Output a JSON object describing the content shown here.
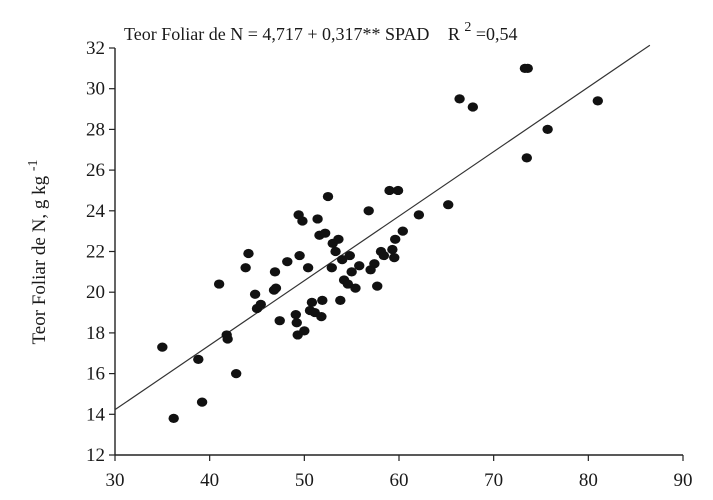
{
  "chart_data": {
    "type": "scatter",
    "title": "",
    "equation": {
      "text": "Teor Foliar de N = 4,717 + 0,317** SPAD",
      "r2_prefix": "R",
      "r2_sup": "2",
      "r2_value": "=0,54"
    },
    "xlabel": "",
    "ylabel": "Teor Foliar de N, g kg",
    "ylabel_sup": "-1",
    "xlim": [
      30,
      90
    ],
    "ylim": [
      12,
      32
    ],
    "xticks": [
      30,
      40,
      50,
      60,
      70,
      80,
      90
    ],
    "yticks": [
      12,
      14,
      16,
      18,
      20,
      22,
      24,
      26,
      28,
      30,
      32
    ],
    "grid": false,
    "point_color": "#111111",
    "line_color": "#333333",
    "regression": {
      "intercept": 4.717,
      "slope": 0.317,
      "x_range": [
        30,
        86.5
      ]
    },
    "points": [
      {
        "x": 35.0,
        "y": 17.3
      },
      {
        "x": 36.2,
        "y": 13.8
      },
      {
        "x": 38.8,
        "y": 16.7
      },
      {
        "x": 39.2,
        "y": 14.6
      },
      {
        "x": 41.0,
        "y": 20.4
      },
      {
        "x": 41.8,
        "y": 17.9
      },
      {
        "x": 41.9,
        "y": 17.7
      },
      {
        "x": 42.8,
        "y": 16.0
      },
      {
        "x": 43.8,
        "y": 21.2
      },
      {
        "x": 44.1,
        "y": 21.9
      },
      {
        "x": 44.8,
        "y": 19.9
      },
      {
        "x": 45.0,
        "y": 19.2
      },
      {
        "x": 45.4,
        "y": 19.4
      },
      {
        "x": 46.9,
        "y": 21.0
      },
      {
        "x": 46.8,
        "y": 20.1
      },
      {
        "x": 47.0,
        "y": 20.2
      },
      {
        "x": 47.4,
        "y": 18.6
      },
      {
        "x": 48.2,
        "y": 21.5
      },
      {
        "x": 49.1,
        "y": 18.9
      },
      {
        "x": 49.2,
        "y": 18.5
      },
      {
        "x": 49.3,
        "y": 17.9
      },
      {
        "x": 49.4,
        "y": 23.8
      },
      {
        "x": 49.5,
        "y": 21.8
      },
      {
        "x": 49.8,
        "y": 23.5
      },
      {
        "x": 50.0,
        "y": 18.1
      },
      {
        "x": 50.4,
        "y": 21.2
      },
      {
        "x": 50.6,
        "y": 19.1
      },
      {
        "x": 50.8,
        "y": 19.5
      },
      {
        "x": 51.1,
        "y": 19.0
      },
      {
        "x": 51.4,
        "y": 23.6
      },
      {
        "x": 51.6,
        "y": 22.8
      },
      {
        "x": 51.8,
        "y": 18.8
      },
      {
        "x": 51.9,
        "y": 19.6
      },
      {
        "x": 52.2,
        "y": 22.9
      },
      {
        "x": 52.5,
        "y": 24.7
      },
      {
        "x": 52.9,
        "y": 21.2
      },
      {
        "x": 53.0,
        "y": 22.4
      },
      {
        "x": 53.3,
        "y": 22.0
      },
      {
        "x": 53.6,
        "y": 22.6
      },
      {
        "x": 53.8,
        "y": 19.6
      },
      {
        "x": 54.0,
        "y": 21.6
      },
      {
        "x": 54.2,
        "y": 20.6
      },
      {
        "x": 54.6,
        "y": 20.4
      },
      {
        "x": 54.8,
        "y": 21.8
      },
      {
        "x": 55.0,
        "y": 21.0
      },
      {
        "x": 55.4,
        "y": 20.2
      },
      {
        "x": 55.8,
        "y": 21.3
      },
      {
        "x": 56.8,
        "y": 24.0
      },
      {
        "x": 57.0,
        "y": 21.1
      },
      {
        "x": 57.4,
        "y": 21.4
      },
      {
        "x": 57.7,
        "y": 20.3
      },
      {
        "x": 58.1,
        "y": 22.0
      },
      {
        "x": 58.4,
        "y": 21.8
      },
      {
        "x": 59.0,
        "y": 25.0
      },
      {
        "x": 59.3,
        "y": 22.1
      },
      {
        "x": 59.5,
        "y": 21.7
      },
      {
        "x": 59.9,
        "y": 25.0
      },
      {
        "x": 59.6,
        "y": 22.6
      },
      {
        "x": 60.4,
        "y": 23.0
      },
      {
        "x": 62.1,
        "y": 23.8
      },
      {
        "x": 65.2,
        "y": 24.3
      },
      {
        "x": 66.4,
        "y": 29.5
      },
      {
        "x": 67.8,
        "y": 29.1
      },
      {
        "x": 73.3,
        "y": 31.0
      },
      {
        "x": 73.5,
        "y": 26.6
      },
      {
        "x": 73.6,
        "y": 31.0
      },
      {
        "x": 75.7,
        "y": 28.0
      },
      {
        "x": 81.0,
        "y": 29.4
      }
    ]
  }
}
